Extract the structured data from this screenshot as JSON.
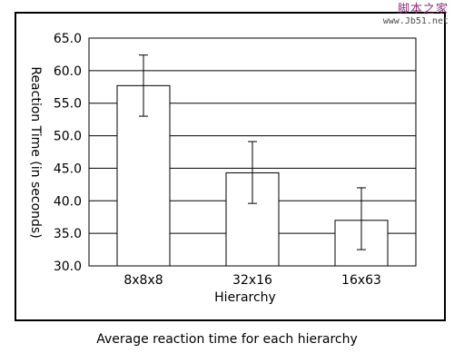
{
  "caption": "Average reaction time for each hierarchy",
  "watermark": {
    "line1": "脚本之家",
    "line2": "www.Jb51.net"
  },
  "chart_data": {
    "type": "bar",
    "title": "",
    "xlabel": "Hierarchy",
    "ylabel": "Reaction Time (in seconds)",
    "categories": [
      "8x8x8",
      "32x16",
      "16x63"
    ],
    "values": [
      57.7,
      44.3,
      37.0
    ],
    "error_low": [
      53.0,
      39.6,
      32.5
    ],
    "error_high": [
      62.4,
      49.1,
      42.0
    ],
    "ylim": [
      30.0,
      65.0
    ],
    "yticks": [
      "30.0",
      "35.0",
      "40.0",
      "45.0",
      "50.0",
      "55.0",
      "60.0",
      "65.0"
    ],
    "grid": "horizontal",
    "bar_color": "#ffffff",
    "line_color": "#000000"
  }
}
